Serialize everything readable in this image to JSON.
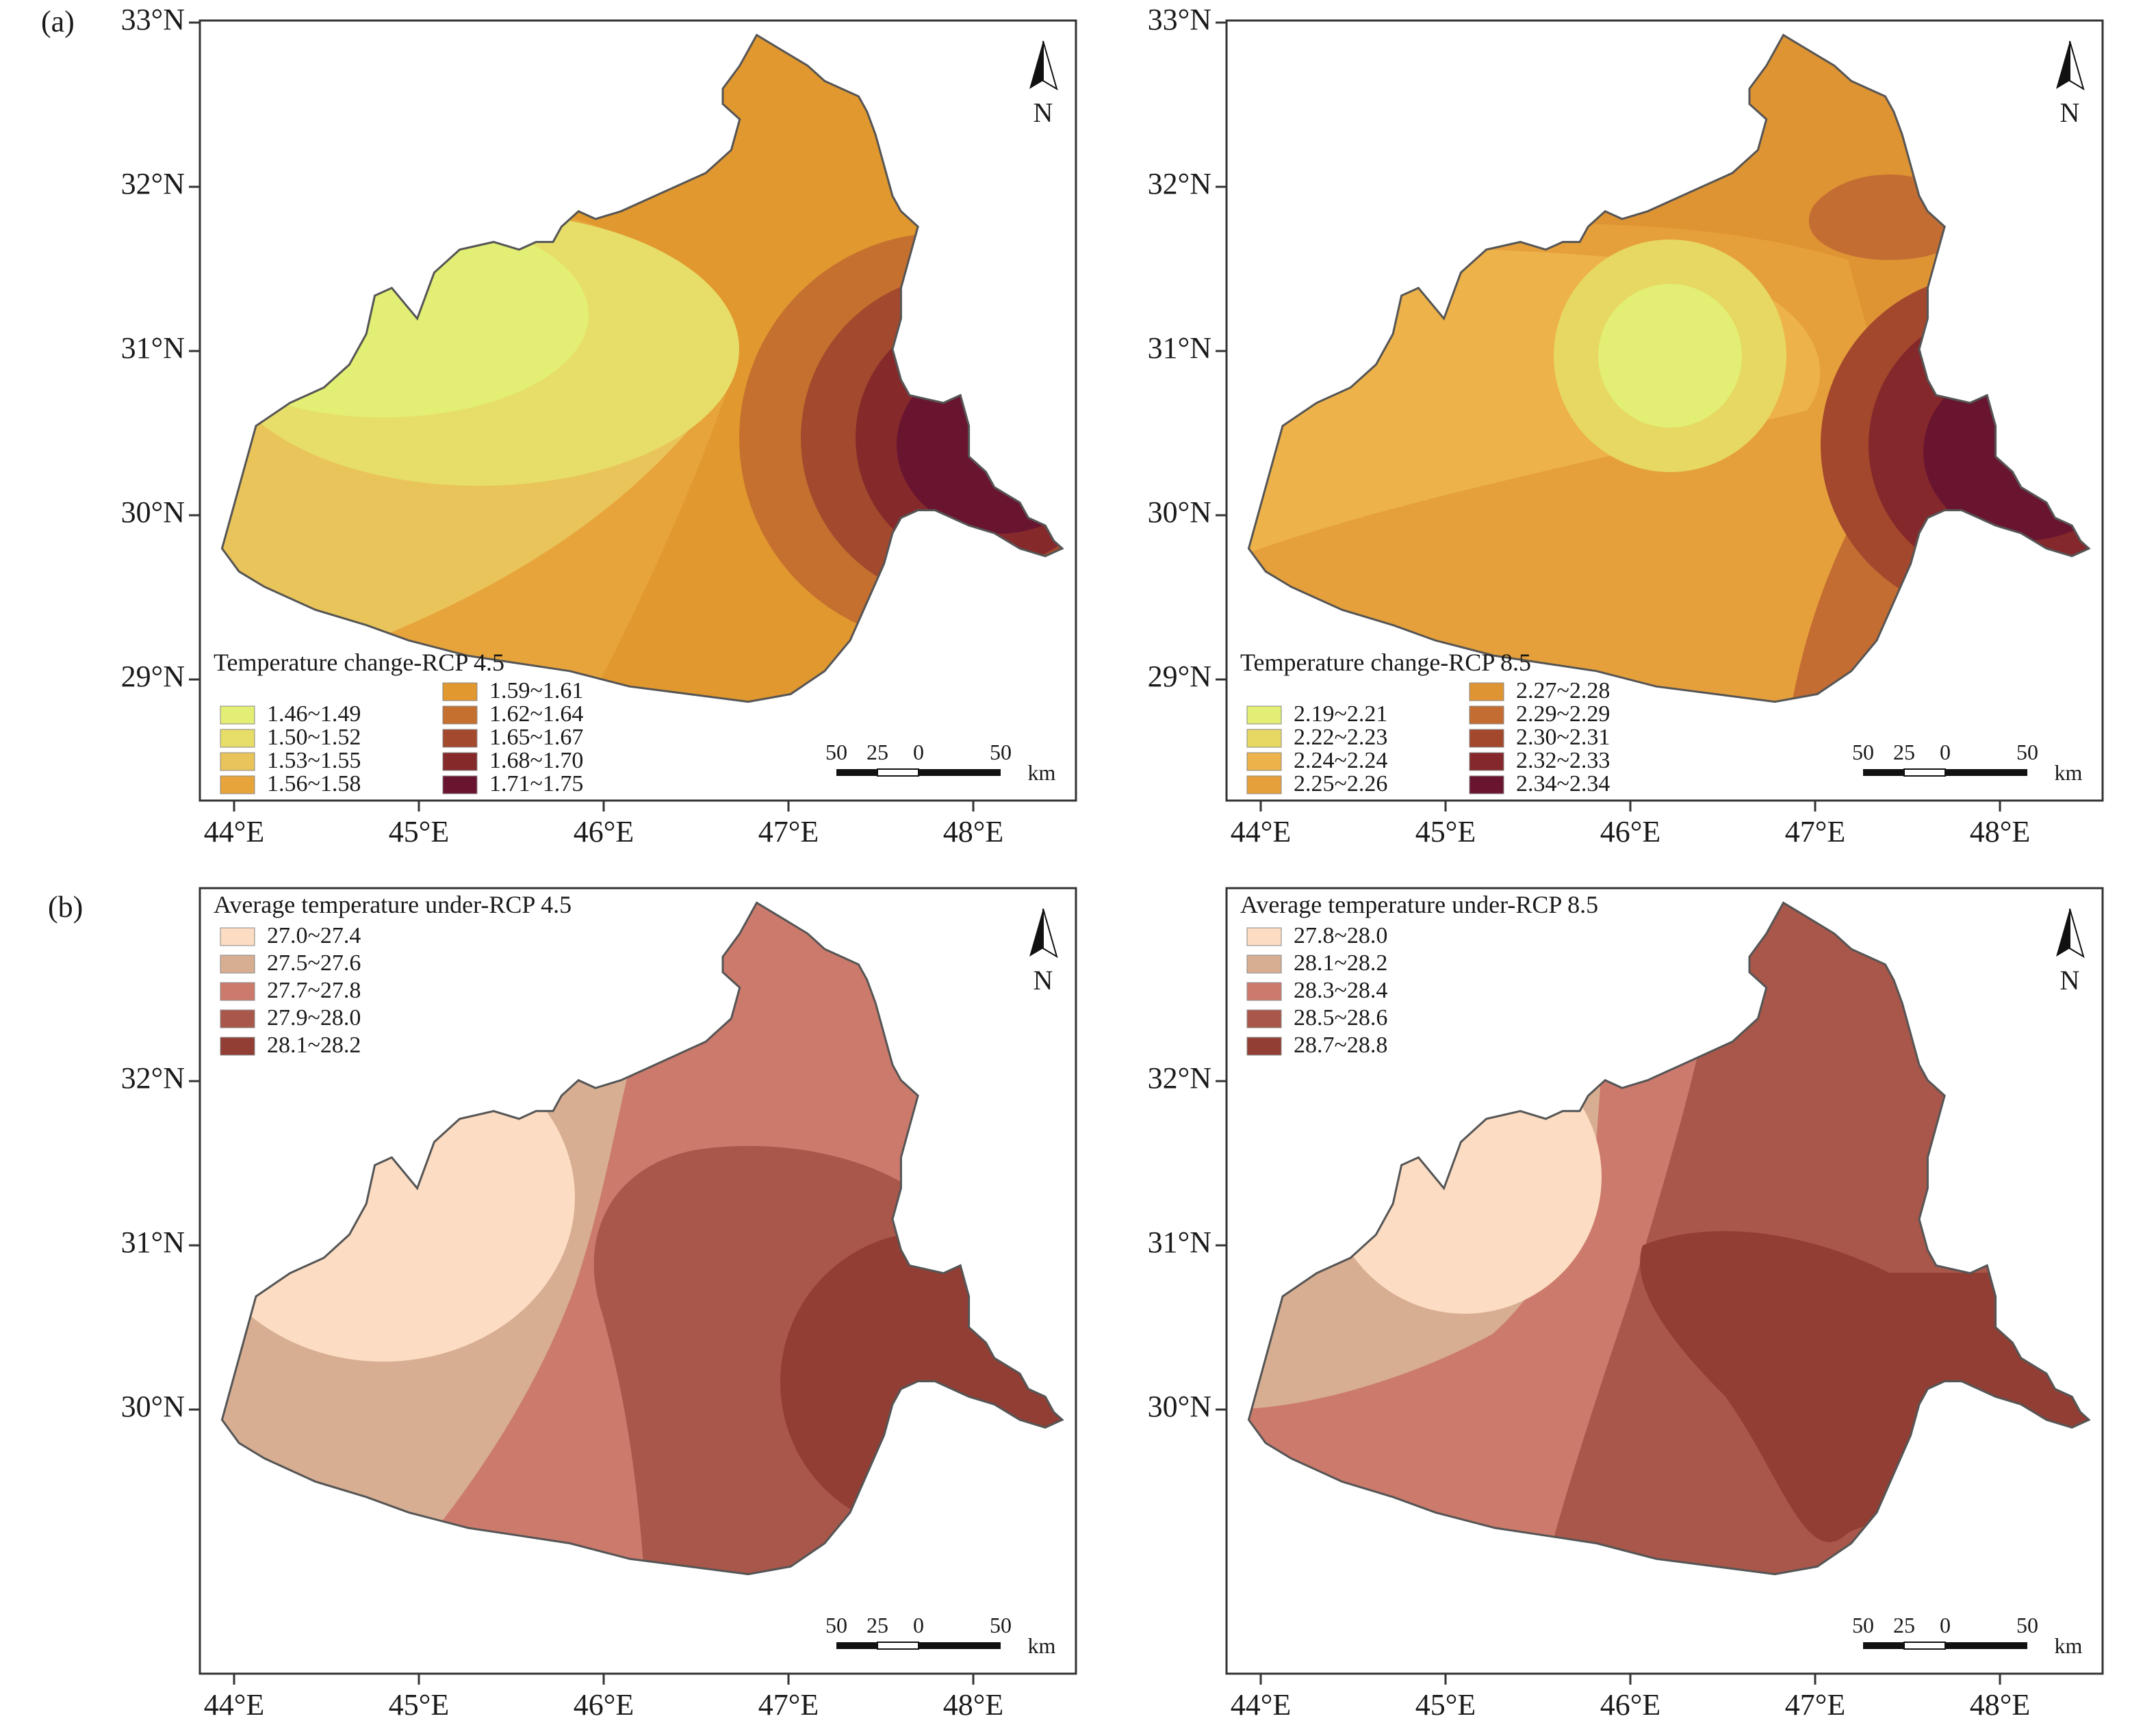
{
  "figure": {
    "panel_a_label": "(a)",
    "panel_b_label": "(b)"
  },
  "maps": [
    {
      "id": "a-left",
      "legend_title": "Temperature change-RCP 4.5",
      "legend": [
        {
          "label": "1.46~1.49",
          "color": "#e2ee74"
        },
        {
          "label": "1.50~1.52",
          "color": "#e7de6a"
        },
        {
          "label": "1.53~1.55",
          "color": "#e9c45a"
        },
        {
          "label": "1.56~1.58",
          "color": "#e7a43a"
        },
        {
          "label": "1.59~1.61",
          "color": "#e1982f"
        },
        {
          "label": "1.62~1.64",
          "color": "#c6702f"
        },
        {
          "label": "1.65~1.67",
          "color": "#a3492e"
        },
        {
          "label": "1.68~1.70",
          "color": "#85292b"
        },
        {
          "label": "1.71~1.75",
          "color": "#6a1530"
        }
      ],
      "lat_ticks": [
        "33°N",
        "32°N",
        "31°N",
        "30°N",
        "29°N"
      ],
      "lon_ticks": [
        "44°E",
        "45°E",
        "46°E",
        "47°E",
        "48°E"
      ]
    },
    {
      "id": "a-right",
      "legend_title": "Temperature change-RCP 8.5",
      "legend": [
        {
          "label": "2.19~2.21",
          "color": "#e2ee74"
        },
        {
          "label": "2.22~2.23",
          "color": "#e6d862"
        },
        {
          "label": "2.24~2.24",
          "color": "#edb24a"
        },
        {
          "label": "2.25~2.26",
          "color": "#e6a03b"
        },
        {
          "label": "2.27~2.28",
          "color": "#df9434"
        },
        {
          "label": "2.29~2.29",
          "color": "#c46d32"
        },
        {
          "label": "2.30~2.31",
          "color": "#a3482d"
        },
        {
          "label": "2.32~2.33",
          "color": "#84282b"
        },
        {
          "label": "2.34~2.34",
          "color": "#6a1530"
        }
      ],
      "lat_ticks": [
        "33°N",
        "32°N",
        "31°N",
        "30°N",
        "29°N"
      ],
      "lon_ticks": [
        "44°E",
        "45°E",
        "46°E",
        "47°E",
        "48°E"
      ]
    },
    {
      "id": "b-left",
      "legend_title": "Average temperature under-RCP 4.5",
      "legend": [
        {
          "label": "27.0~27.4",
          "color": "#fcdcc2"
        },
        {
          "label": "27.5~27.6",
          "color": "#d7ae92"
        },
        {
          "label": "27.7~27.8",
          "color": "#cc7a6c"
        },
        {
          "label": "27.9~28.0",
          "color": "#a8574a"
        },
        {
          "label": "28.1~28.2",
          "color": "#923e34"
        }
      ],
      "lat_ticks": [
        "32°N",
        "31°N",
        "30°N"
      ],
      "lon_ticks": [
        "44°E",
        "45°E",
        "46°E",
        "47°E",
        "48°E"
      ]
    },
    {
      "id": "b-right",
      "legend_title": "Average temperature under-RCP 8.5",
      "legend": [
        {
          "label": "27.8~28.0",
          "color": "#fcdcc2"
        },
        {
          "label": "28.1~28.2",
          "color": "#d7ae92"
        },
        {
          "label": "28.3~28.4",
          "color": "#cc7a6c"
        },
        {
          "label": "28.5~28.6",
          "color": "#a8574a"
        },
        {
          "label": "28.7~28.8",
          "color": "#923e34"
        }
      ],
      "lat_ticks": [
        "32°N",
        "31°N",
        "30°N"
      ],
      "lon_ticks": [
        "44°E",
        "45°E",
        "46°E",
        "47°E",
        "48°E"
      ]
    }
  ],
  "scale_bar": {
    "labels": [
      "50",
      "25",
      "0",
      "50"
    ],
    "unit": "km"
  },
  "north_label": "N"
}
